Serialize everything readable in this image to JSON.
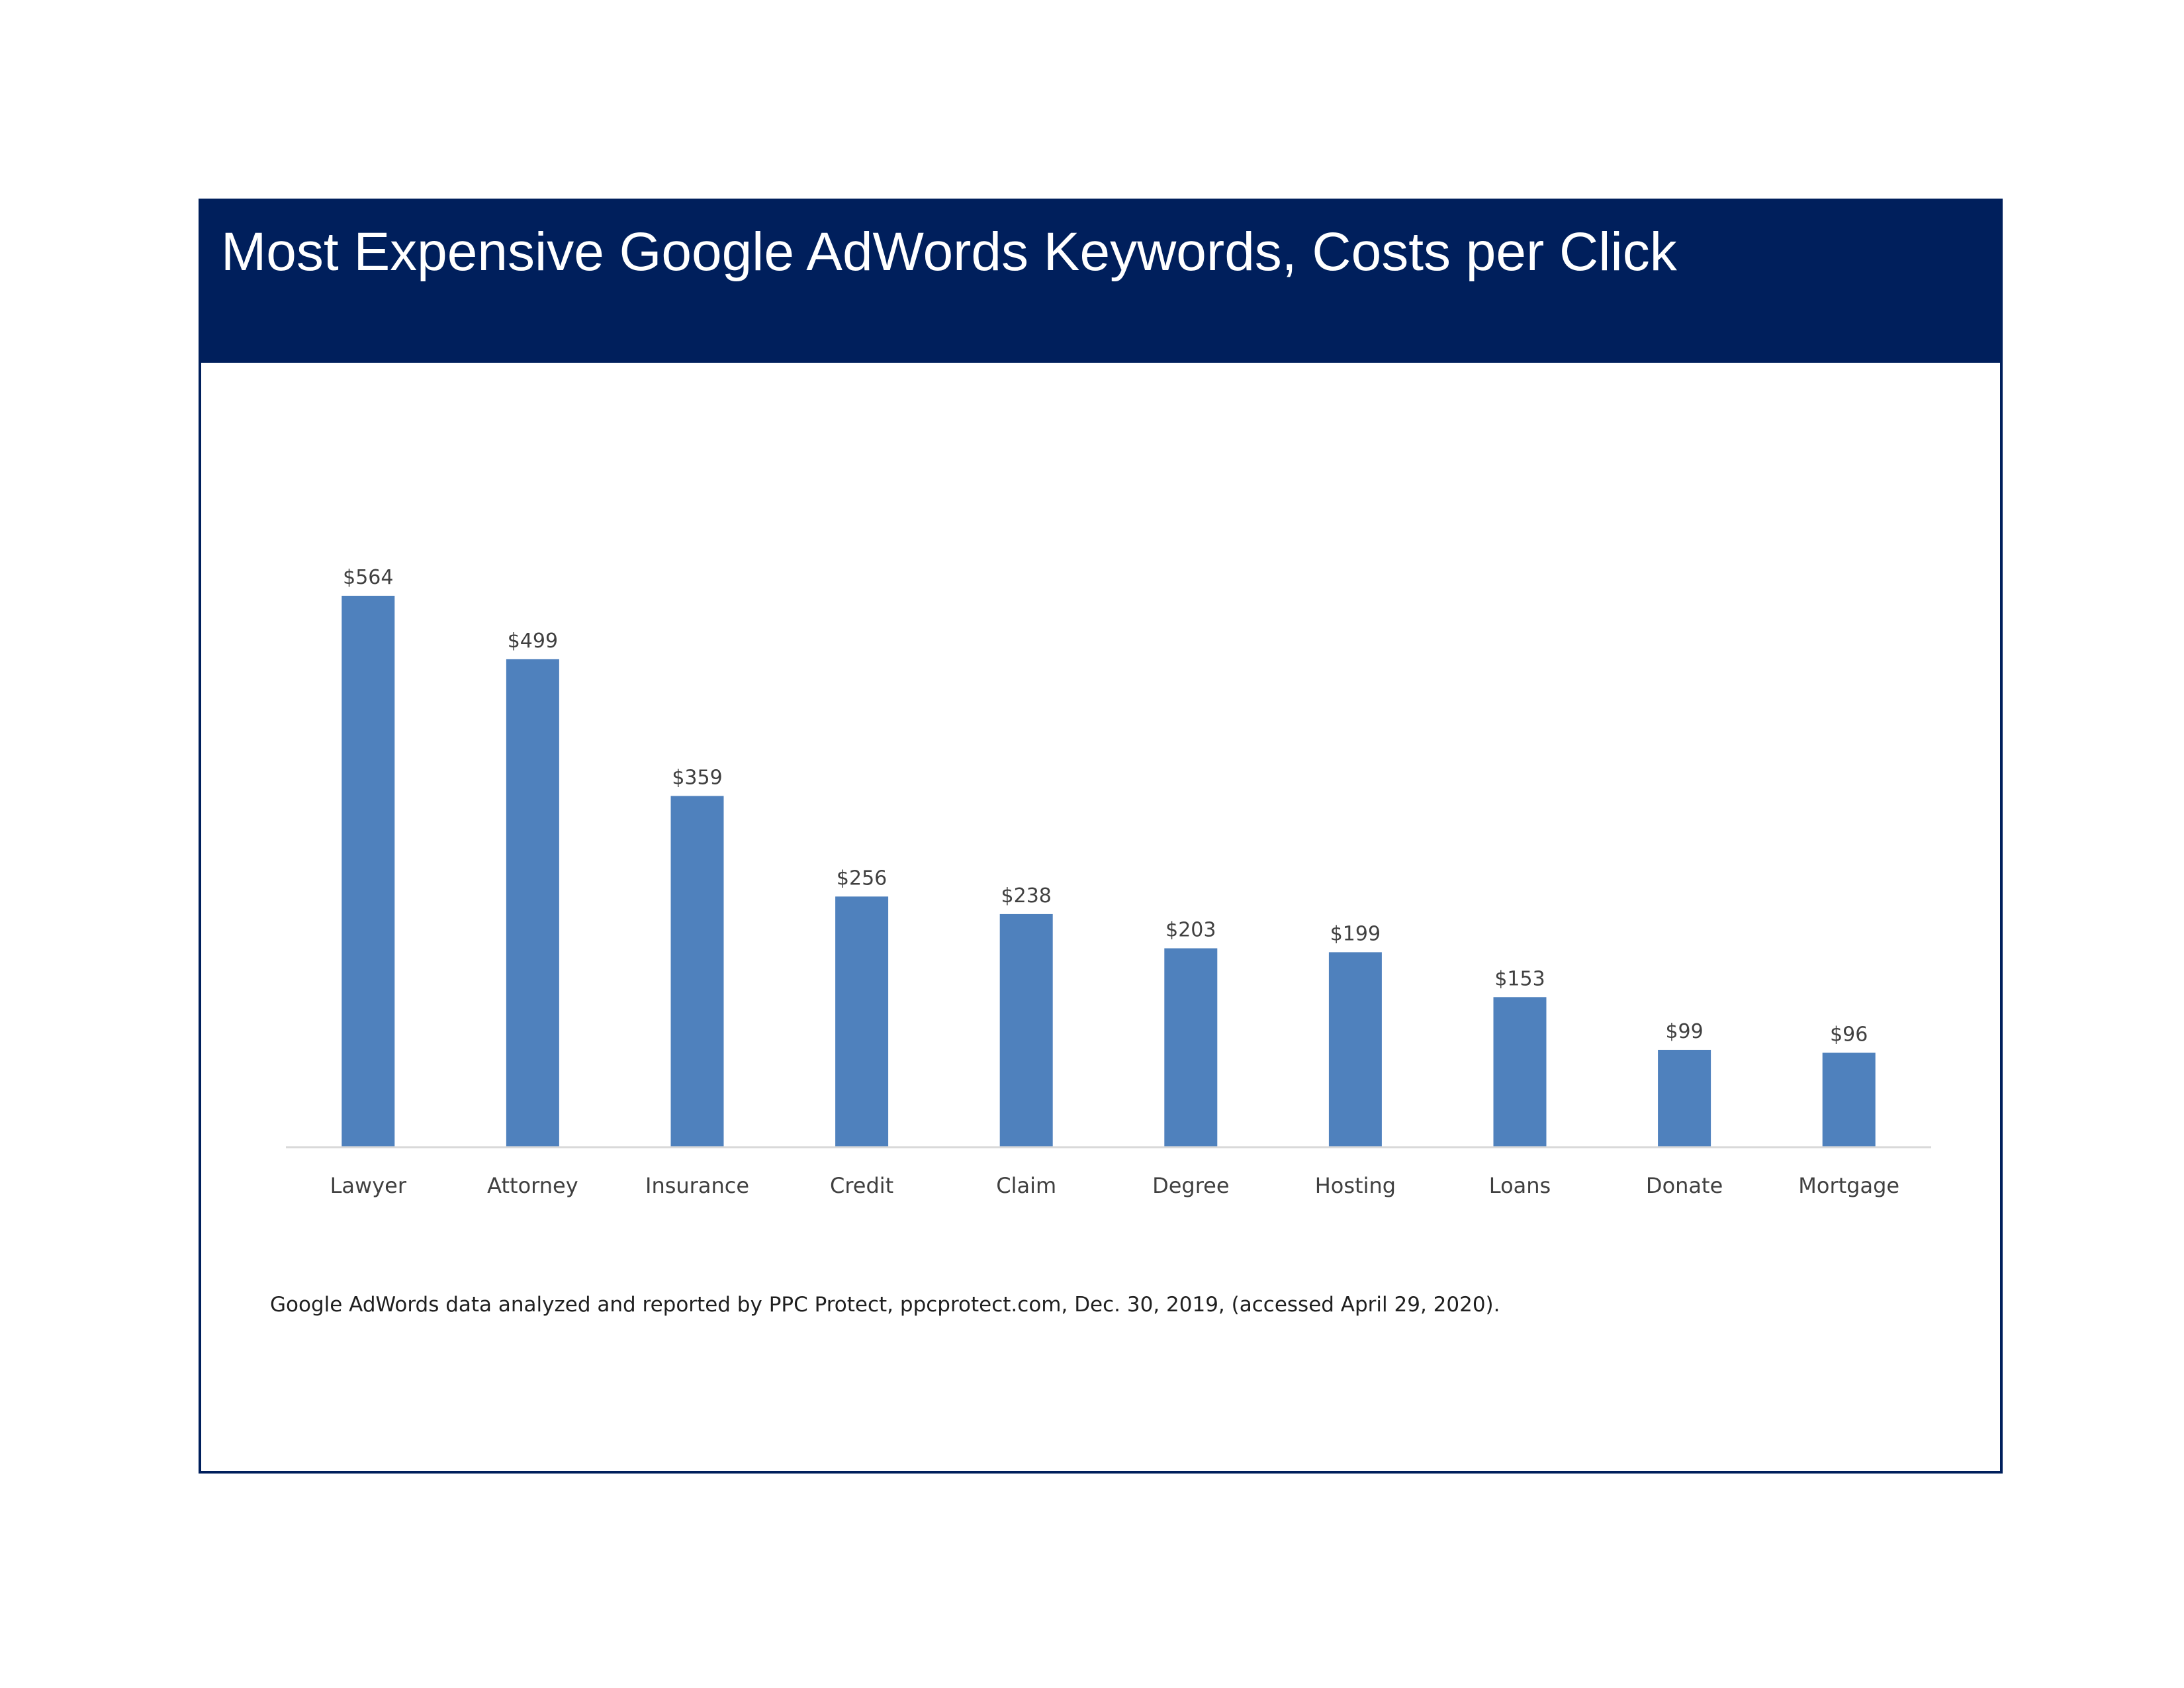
{
  "chart_data": {
    "type": "bar",
    "title": "Most Expensive Google AdWords Keywords, Costs per Click",
    "categories": [
      "Lawyer",
      "Attorney",
      "Insurance",
      "Credit",
      "Claim",
      "Degree",
      "Hosting",
      "Loans",
      "Donate",
      "Mortgage"
    ],
    "values": [
      564,
      499,
      359,
      256,
      238,
      203,
      199,
      153,
      99,
      96
    ],
    "value_labels": [
      "$564",
      "$499",
      "$359",
      "$256",
      "$238",
      "$203",
      "$199",
      "$153",
      "$99",
      "$96"
    ],
    "xlabel": "",
    "ylabel": "",
    "ylim": [
      0,
      564
    ],
    "grid": false,
    "legend": "none",
    "bar_color": "#4f81bd",
    "axis_color": "#d9d9d9"
  },
  "header": {
    "band_color": "#001f5c"
  },
  "footer": {
    "source": "Google AdWords data analyzed and reported by PPC Protect, ppcprotect.com, Dec. 30, 2019, (accessed April 29, 2020)."
  }
}
